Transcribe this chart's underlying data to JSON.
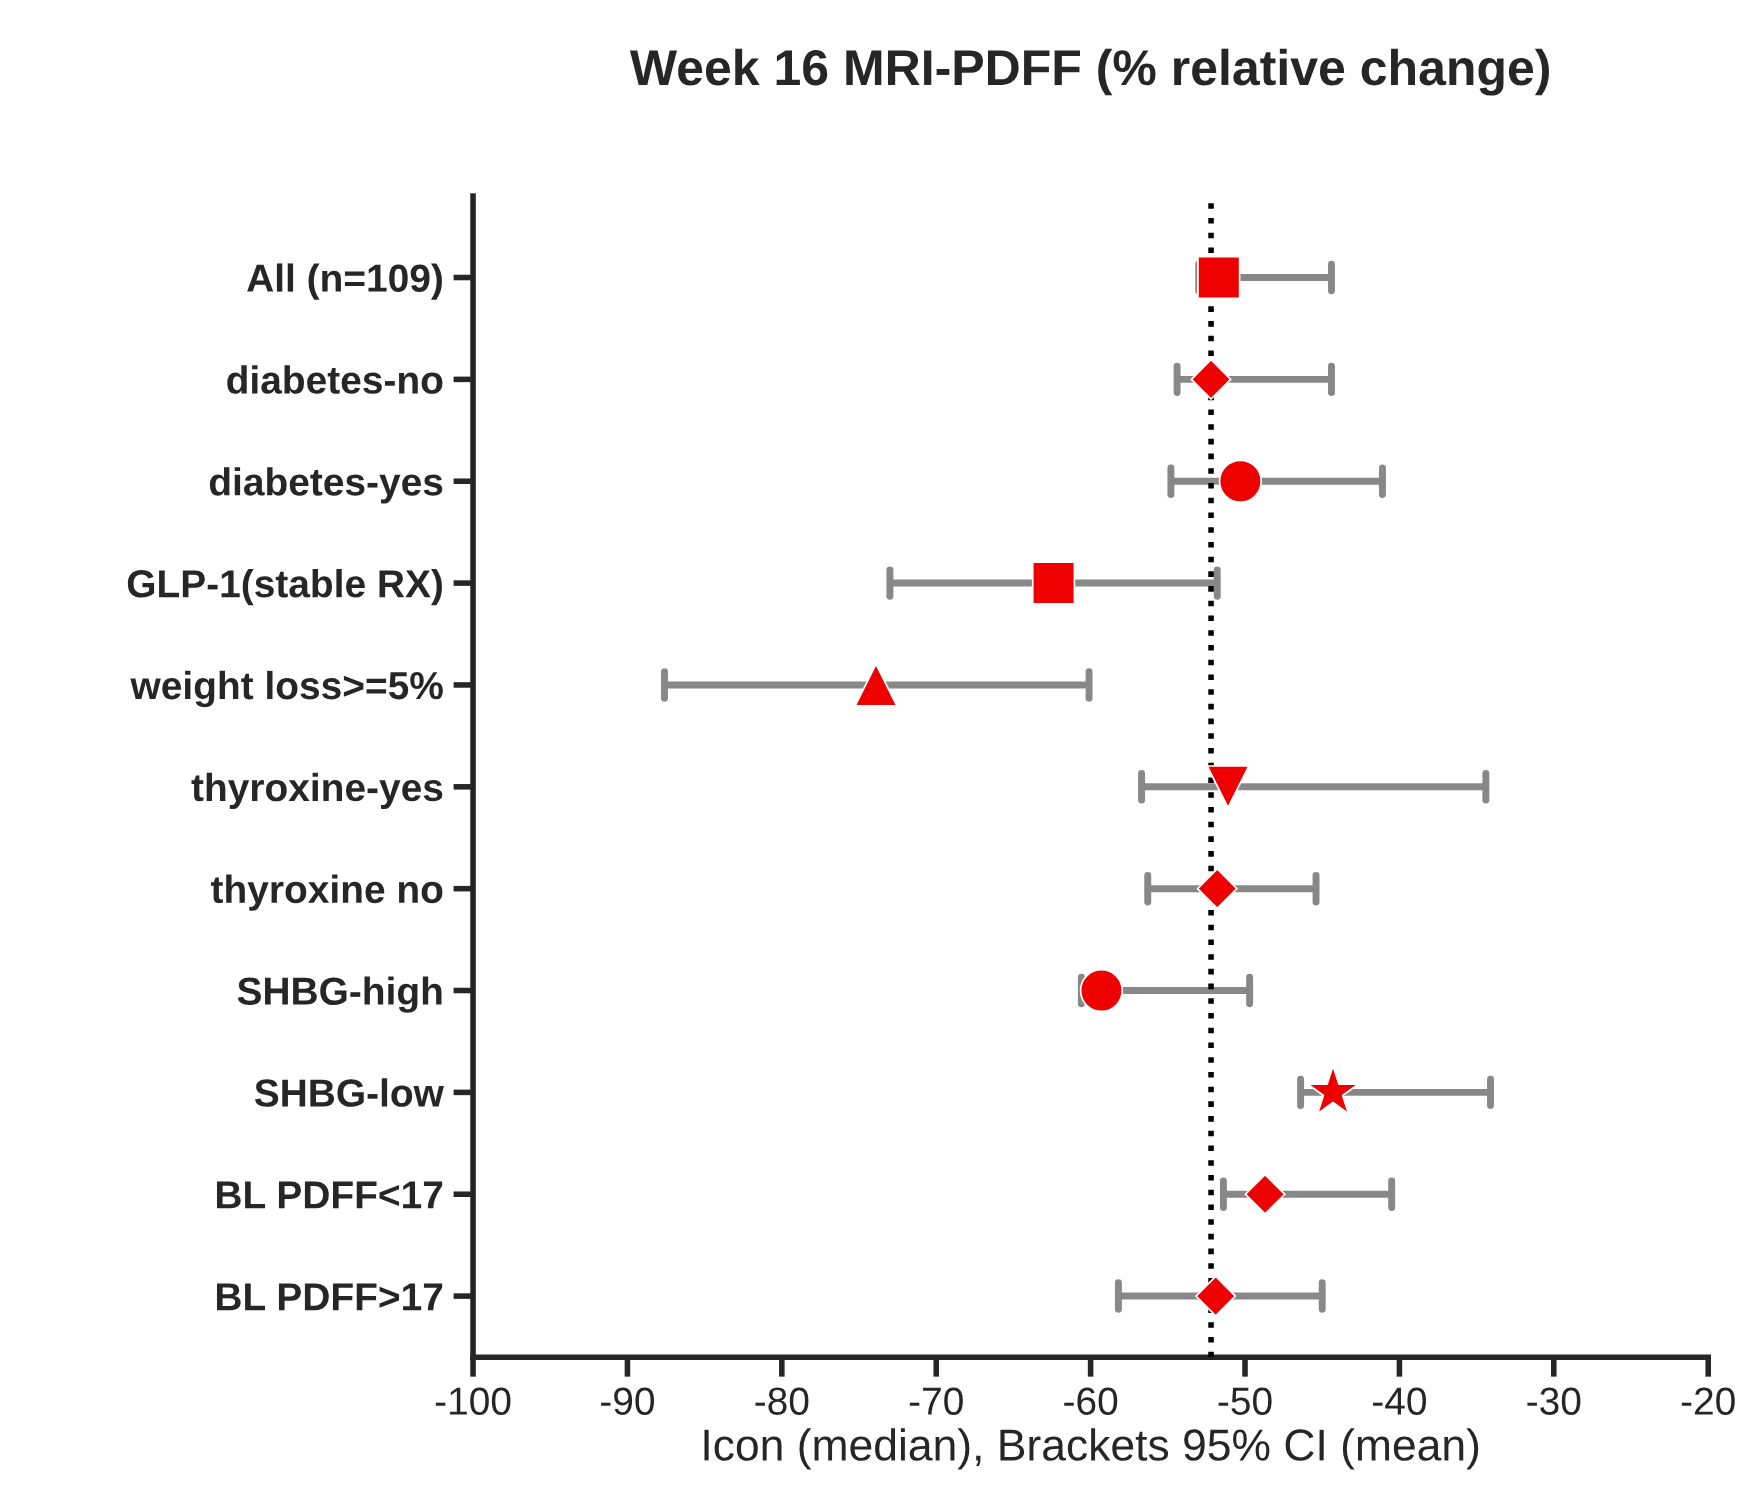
{
  "chart_data": {
    "type": "scatter",
    "orientation": "horizontal",
    "title": "Week 16 MRI-PDFF (% relative change)",
    "xlabel": "Icon (median), Brackets 95% CI (mean)",
    "categories": [
      "All (n=109)",
      "diabetes-no",
      "diabetes-yes",
      "GLP-1(stable RX)",
      "weight loss>=5%",
      "thyroxine-yes",
      "thyroxine no",
      "SHBG-high",
      "SHBG-low",
      "BL PDFF<17",
      "BL PDFF>17"
    ],
    "series": [
      {
        "color": "#ee0000",
        "marker": "square",
        "values": [
          -51.7,
          null,
          null,
          -62.4,
          null,
          null,
          null,
          null,
          null,
          null,
          null
        ],
        "errors": [
          [
            -53.0,
            -44.4
          ],
          null,
          null,
          [
            -73.0,
            -51.8
          ],
          null,
          null,
          null,
          null,
          null,
          null,
          null
        ]
      },
      {
        "color": "#ee0000",
        "marker": "diamond",
        "values": [
          null,
          -52.2,
          null,
          null,
          null,
          null,
          -51.8,
          null,
          null,
          -48.7,
          -51.9
        ],
        "errors": [
          null,
          [
            -54.4,
            -44.4
          ],
          null,
          null,
          null,
          null,
          [
            -56.3,
            -45.4
          ],
          null,
          null,
          [
            -51.4,
            -40.5
          ],
          [
            -58.2,
            -45.0
          ]
        ]
      },
      {
        "color": "#ee0000",
        "marker": "circle",
        "values": [
          null,
          null,
          -50.3,
          null,
          null,
          null,
          null,
          -59.3,
          null,
          null,
          null
        ],
        "errors": [
          null,
          null,
          [
            -54.8,
            -41.1
          ],
          null,
          null,
          null,
          null,
          [
            -60.6,
            -49.7
          ],
          null,
          null,
          null
        ]
      },
      {
        "color": "#ee0000",
        "marker": "triangle",
        "values": [
          null,
          null,
          null,
          null,
          -73.9,
          null,
          null,
          null,
          null,
          null,
          null
        ],
        "errors": [
          null,
          null,
          null,
          null,
          [
            -87.6,
            -60.1
          ],
          null,
          null,
          null,
          null,
          null,
          null
        ]
      },
      {
        "color": "#ee0000",
        "marker": "triangle_down",
        "values": [
          null,
          null,
          null,
          null,
          null,
          -51.1,
          null,
          null,
          null,
          null,
          null
        ],
        "errors": [
          null,
          null,
          null,
          null,
          null,
          [
            -56.7,
            -34.4
          ],
          null,
          null,
          null,
          null,
          null
        ]
      },
      {
        "color": "#ee0000",
        "marker": "star",
        "values": [
          null,
          null,
          null,
          null,
          null,
          null,
          null,
          null,
          -44.3,
          null,
          null
        ],
        "errors": [
          null,
          null,
          null,
          null,
          null,
          null,
          null,
          null,
          [
            -46.4,
            -34.1
          ],
          null,
          null
        ]
      }
    ],
    "xlim": [
      -100,
      -20
    ],
    "xticks": [
      -100,
      -90,
      -80,
      -70,
      -60,
      -50,
      -40,
      -30,
      -20
    ],
    "ref_lines": [
      {
        "axis": "x",
        "value": -52.2,
        "color": "#000000",
        "line_style": "dotted"
      }
    ],
    "grid": false,
    "legend": false
  }
}
